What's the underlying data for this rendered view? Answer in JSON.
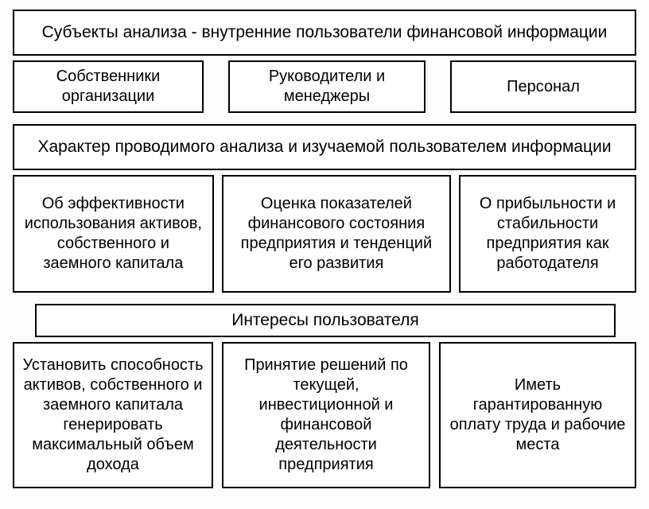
{
  "diagram": {
    "type": "infographic",
    "background_color": "#fdfdfd",
    "box_background": "#ffffff",
    "border_color": "#000000",
    "border_width": 2,
    "font_family": "Arial",
    "text_color": "#000000",
    "sections": [
      {
        "header": "Субъекты анализа - внутренние пользователи финансовой информации",
        "header_fontsize": 21,
        "cells": [
          {
            "text": "Собственники организации",
            "fontsize": 20
          },
          {
            "text": "Руководители и менеджеры",
            "fontsize": 20
          },
          {
            "text": "Персонал",
            "fontsize": 20
          }
        ]
      },
      {
        "header": "Характер проводимого анализа и изучаемой пользователем информации",
        "header_fontsize": 21,
        "cells": [
          {
            "text": "Об эффективности использования активов, собственного и заемного капитала",
            "fontsize": 20
          },
          {
            "text": "Оценка показателей финансового состояния предприятия и тенденций его развития",
            "fontsize": 20
          },
          {
            "text": "О прибыльности и стабильности предприятия как работодателя",
            "fontsize": 20
          }
        ]
      },
      {
        "header": "Интересы пользователя",
        "header_fontsize": 21,
        "cells": [
          {
            "text": "Установить способность активов, собственного и заемного капитала генерировать максимальный объем дохода",
            "fontsize": 20
          },
          {
            "text": "Принятие решений по текущей, инвестиционной и финансовой деятельности предприятия",
            "fontsize": 20
          },
          {
            "text": "Иметь гарантированную оплату труда и рабочие места",
            "fontsize": 20
          }
        ]
      }
    ]
  }
}
